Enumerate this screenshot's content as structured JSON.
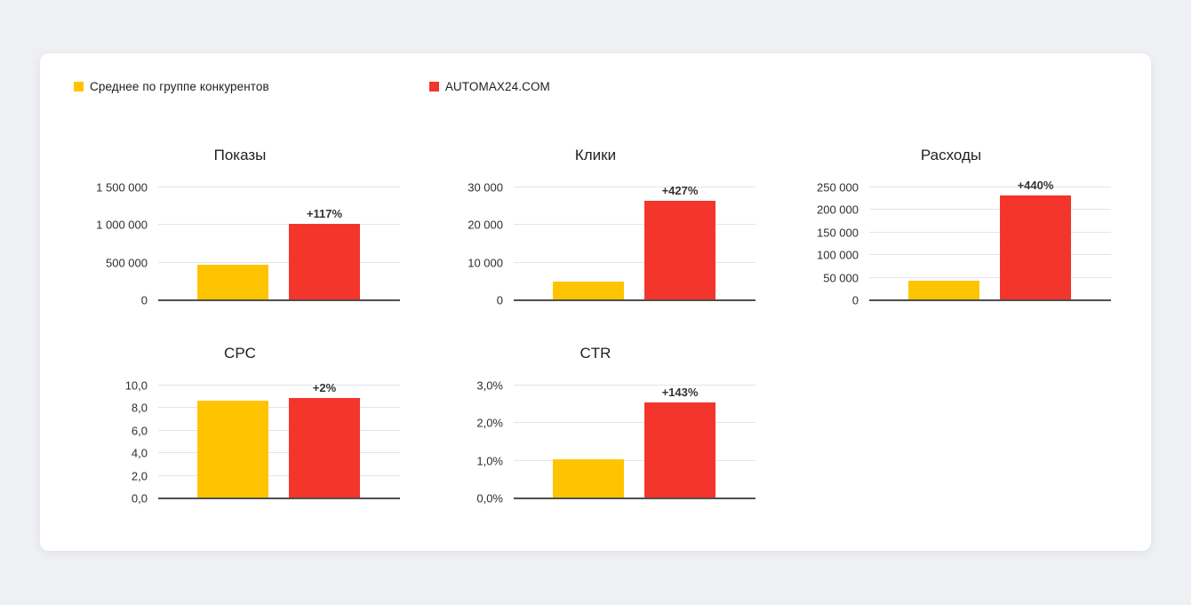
{
  "legend": {
    "items": [
      {
        "label": "Среднее по группе конкурентов",
        "color": "#FFC400"
      },
      {
        "label": "AUTOMAX24.COM",
        "color": "#F3352C"
      }
    ]
  },
  "colors": {
    "yellow": "#FFC400",
    "red": "#F3352C",
    "axis": "#4f4f4f",
    "grid": "#e4e4e4"
  },
  "chart_data": [
    {
      "id": "impressions",
      "type": "bar",
      "title": "Показы",
      "categories": [
        "Среднее по группе конкурентов",
        "AUTOMAX24.COM"
      ],
      "values": [
        470000,
        1020000
      ],
      "annotation": "+117%",
      "ylim": [
        0,
        1500000
      ],
      "yticks": [
        {
          "value": 0,
          "label": "0"
        },
        {
          "value": 500000,
          "label": "500 000"
        },
        {
          "value": 1000000,
          "label": "1 000 000"
        },
        {
          "value": 1500000,
          "label": "1 500 000"
        }
      ]
    },
    {
      "id": "clicks",
      "type": "bar",
      "title": "Клики",
      "categories": [
        "Среднее по группе конкурентов",
        "AUTOMAX24.COM"
      ],
      "values": [
        5000,
        26400
      ],
      "annotation": "+427%",
      "ylim": [
        0,
        30000
      ],
      "yticks": [
        {
          "value": 0,
          "label": "0"
        },
        {
          "value": 10000,
          "label": "10 000"
        },
        {
          "value": 20000,
          "label": "20 000"
        },
        {
          "value": 30000,
          "label": "30 000"
        }
      ]
    },
    {
      "id": "costs",
      "type": "bar",
      "title": "Расходы",
      "categories": [
        "Среднее по группе конкурентов",
        "AUTOMAX24.COM"
      ],
      "values": [
        43000,
        232000
      ],
      "annotation": "+440%",
      "ylim": [
        0,
        250000
      ],
      "yticks": [
        {
          "value": 0,
          "label": "0"
        },
        {
          "value": 50000,
          "label": "50 000"
        },
        {
          "value": 100000,
          "label": "100 000"
        },
        {
          "value": 150000,
          "label": "150 000"
        },
        {
          "value": 200000,
          "label": "200 000"
        },
        {
          "value": 250000,
          "label": "250 000"
        }
      ]
    },
    {
      "id": "cpc",
      "type": "bar",
      "title": "CPC",
      "categories": [
        "Среднее по группе конкурентов",
        "AUTOMAX24.COM"
      ],
      "values": [
        8.7,
        8.9
      ],
      "annotation": "+2%",
      "ylim": [
        0,
        10
      ],
      "yticks": [
        {
          "value": 0,
          "label": "0,0"
        },
        {
          "value": 2,
          "label": "2,0"
        },
        {
          "value": 4,
          "label": "4,0"
        },
        {
          "value": 6,
          "label": "6,0"
        },
        {
          "value": 8,
          "label": "8,0"
        },
        {
          "value": 10,
          "label": "10,0"
        }
      ]
    },
    {
      "id": "ctr",
      "type": "bar",
      "title": "CTR",
      "categories": [
        "Среднее по группе конкурентов",
        "AUTOMAX24.COM"
      ],
      "values": [
        1.05,
        2.55
      ],
      "annotation": "+143%",
      "ylim": [
        0,
        3
      ],
      "yticks": [
        {
          "value": 0,
          "label": "0,0%"
        },
        {
          "value": 1,
          "label": "1,0%"
        },
        {
          "value": 2,
          "label": "2,0%"
        },
        {
          "value": 3,
          "label": "3,0%"
        }
      ]
    }
  ]
}
